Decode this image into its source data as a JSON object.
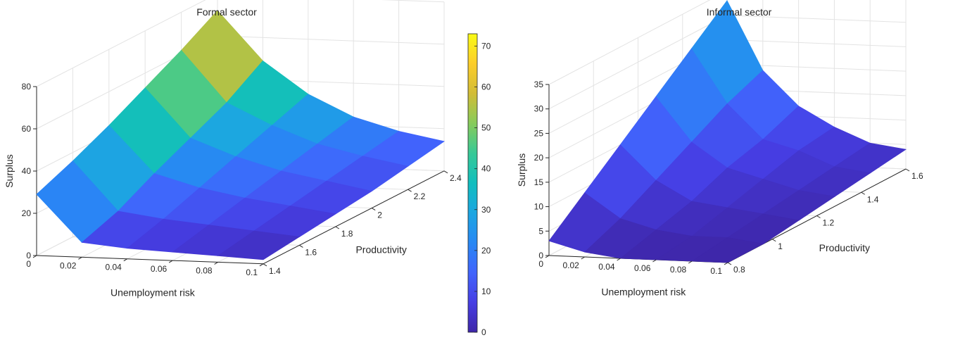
{
  "chart_data": [
    {
      "type": "surface",
      "title": "Formal sector",
      "xlabel": "Unemployment risk",
      "ylabel": "Productivity",
      "zlabel": "Surplus",
      "x_ticks": [
        "0",
        "0.02",
        "0.04",
        "0.06",
        "0.08",
        "0.1"
      ],
      "y_ticks": [
        "1.4",
        "1.6",
        "1.8",
        "2",
        "2.2",
        "2.4"
      ],
      "z_ticks": [
        "0",
        "20",
        "40",
        "60",
        "80"
      ],
      "xlim": [
        0,
        0.1
      ],
      "ylim": [
        1.4,
        2.4
      ],
      "zlim": [
        0,
        80
      ],
      "grid": true,
      "x": [
        0.0,
        0.02,
        0.04,
        0.06,
        0.08,
        0.1
      ],
      "y": [
        1.4,
        1.6,
        1.8,
        2.0,
        2.2,
        2.4
      ],
      "z": [
        [
          29,
          36,
          44,
          53,
          62,
          72
        ],
        [
          7,
          13,
          22,
          30,
          38,
          49
        ],
        [
          5,
          10,
          16,
          22,
          28,
          34
        ],
        [
          4,
          8,
          12,
          16,
          20,
          24
        ],
        [
          3,
          6,
          9,
          12,
          15,
          18
        ],
        [
          2,
          4,
          6,
          8,
          11,
          14
        ]
      ],
      "colorbar": {
        "ticks": [
          "0",
          "10",
          "20",
          "30",
          "40",
          "50",
          "60",
          "70"
        ],
        "range": [
          0,
          73
        ],
        "colormap": "parula"
      }
    },
    {
      "type": "surface",
      "title": "Informal sector",
      "xlabel": "Unemployment risk",
      "ylabel": "Productivity",
      "zlabel": "Surplus",
      "x_ticks": [
        "0",
        "0.02",
        "0.04",
        "0.06",
        "0.08",
        "0.1"
      ],
      "y_ticks": [
        "0.8",
        "1",
        "1.2",
        "1.4",
        "1.6"
      ],
      "z_ticks": [
        "0",
        "5",
        "10",
        "15",
        "20",
        "25",
        "30",
        "35"
      ],
      "xlim": [
        0,
        0.1
      ],
      "ylim": [
        0.8,
        1.6
      ],
      "zlim": [
        0,
        35
      ],
      "grid": true,
      "x": [
        0.0,
        0.02,
        0.04,
        0.06,
        0.08,
        0.1
      ],
      "y": [
        0.8,
        0.96,
        1.12,
        1.28,
        1.44,
        1.6
      ],
      "z": [
        [
          3,
          9,
          15,
          21,
          27,
          33
        ],
        [
          1,
          4,
          8,
          12,
          16,
          19
        ],
        [
          0,
          2,
          4,
          7,
          9,
          12
        ],
        [
          0,
          1,
          3,
          5,
          7,
          8
        ],
        [
          0,
          1,
          2,
          3,
          4,
          5
        ],
        [
          0,
          0,
          1,
          2,
          3,
          4
        ]
      ]
    }
  ]
}
